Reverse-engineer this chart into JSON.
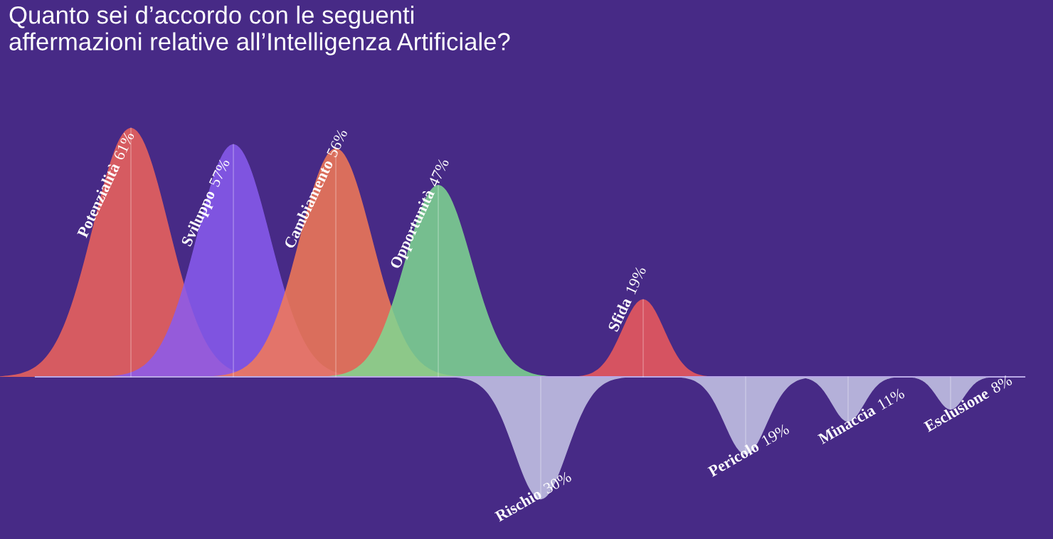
{
  "chart_data": {
    "type": "other",
    "title": "Quanto sei d’accordo con le seguenti\naffermazioni relative all’Intelligenza Artificiale?",
    "categories": [
      "Potenzialità",
      "Sviluppo",
      "Cambiamento",
      "Opportunità",
      "Rischio",
      "Sfida",
      "Pericolo",
      "Minaccia",
      "Esclusione"
    ],
    "series": [
      {
        "values": [
          61,
          57,
          56,
          47,
          null,
          19,
          null,
          null,
          null
        ],
        "value_labels": [
          "61%",
          "57%",
          "56%",
          "47%",
          null,
          "19%",
          null,
          null,
          null
        ],
        "colors": [
          "#f0645a",
          "#8a5cf0",
          "#f57a55",
          "#7fd890",
          null,
          "#f05a5a",
          null,
          null,
          null
        ]
      },
      {
        "values": [
          null,
          null,
          null,
          null,
          30,
          null,
          19,
          11,
          8
        ],
        "value_labels": [
          null,
          null,
          null,
          null,
          "30%",
          null,
          "19%",
          "11%",
          "8%"
        ],
        "color": "#c8c8e8"
      }
    ]
  }
}
